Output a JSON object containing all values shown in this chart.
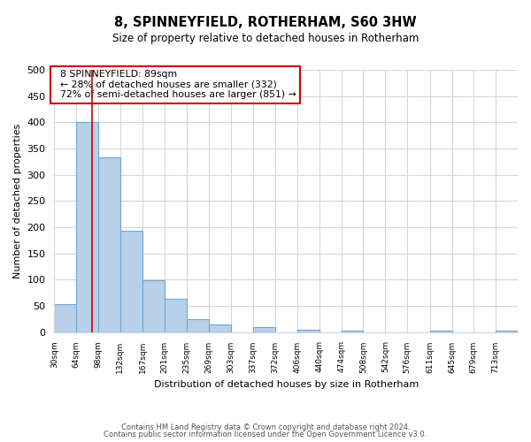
{
  "title": "8, SPINNEYFIELD, ROTHERHAM, S60 3HW",
  "subtitle": "Size of property relative to detached houses in Rotherham",
  "xlabel": "Distribution of detached houses by size in Rotherham",
  "ylabel": "Number of detached properties",
  "bar_labels": [
    "30sqm",
    "64sqm",
    "98sqm",
    "132sqm",
    "167sqm",
    "201sqm",
    "235sqm",
    "269sqm",
    "303sqm",
    "337sqm",
    "372sqm",
    "406sqm",
    "440sqm",
    "474sqm",
    "508sqm",
    "542sqm",
    "576sqm",
    "611sqm",
    "645sqm",
    "679sqm",
    "713sqm"
  ],
  "bar_values": [
    53,
    401,
    333,
    193,
    99,
    63,
    25,
    15,
    0,
    10,
    0,
    5,
    0,
    2,
    0,
    0,
    0,
    2,
    0,
    0,
    2
  ],
  "bar_color": "#b8d0e8",
  "bar_edge_color": "#6fa8d0",
  "property_line_x": 89,
  "bin_edges": [
    30,
    64,
    98,
    132,
    167,
    201,
    235,
    269,
    303,
    337,
    372,
    406,
    440,
    474,
    508,
    542,
    576,
    611,
    645,
    679,
    713,
    747
  ],
  "ylim": [
    0,
    500
  ],
  "yticks": [
    0,
    50,
    100,
    150,
    200,
    250,
    300,
    350,
    400,
    450,
    500
  ],
  "annotation_title": "8 SPINNEYFIELD: 89sqm",
  "annotation_line1": "← 28% of detached houses are smaller (332)",
  "annotation_line2": "72% of semi-detached houses are larger (851) →",
  "footer_line1": "Contains HM Land Registry data © Crown copyright and database right 2024.",
  "footer_line2": "Contains public sector information licensed under the Open Government Licence v3.0.",
  "property_line_color": "#cc0000",
  "annotation_box_edge_color": "#cc0000",
  "grid_color": "#d0d8e0"
}
